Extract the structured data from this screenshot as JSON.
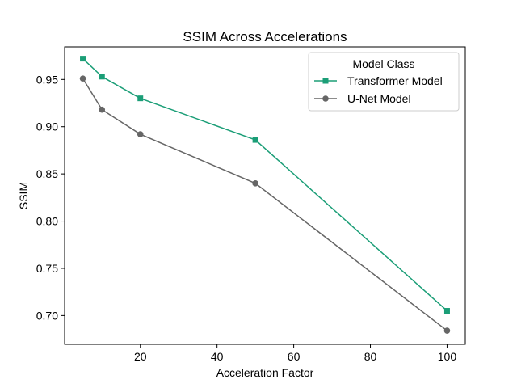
{
  "chart_data": {
    "type": "line",
    "title": "SSIM Across Accelerations",
    "xlabel": "Acceleration Factor",
    "ylabel": "SSIM",
    "xlim": [
      0.25,
      104.75
    ],
    "ylim": [
      0.6695,
      0.9845
    ],
    "xticks": [
      20,
      40,
      60,
      80,
      100
    ],
    "xtick_labels": [
      "20",
      "40",
      "60",
      "80",
      "100"
    ],
    "yticks": [
      0.7,
      0.75,
      0.8,
      0.85,
      0.9,
      0.95
    ],
    "ytick_labels": [
      "0.70",
      "0.75",
      "0.80",
      "0.85",
      "0.90",
      "0.95"
    ],
    "grid": false,
    "legend": {
      "title": "Model Class",
      "placement": "top-right"
    },
    "x": [
      5,
      10,
      20,
      50,
      100
    ],
    "series": [
      {
        "name": "Transformer Model",
        "values": [
          0.972,
          0.953,
          0.93,
          0.886,
          0.705
        ],
        "color": "#1b9e77",
        "marker": "square"
      },
      {
        "name": "U-Net Model",
        "values": [
          0.951,
          0.918,
          0.892,
          0.84,
          0.684
        ],
        "color": "#666666",
        "marker": "circle"
      }
    ]
  }
}
